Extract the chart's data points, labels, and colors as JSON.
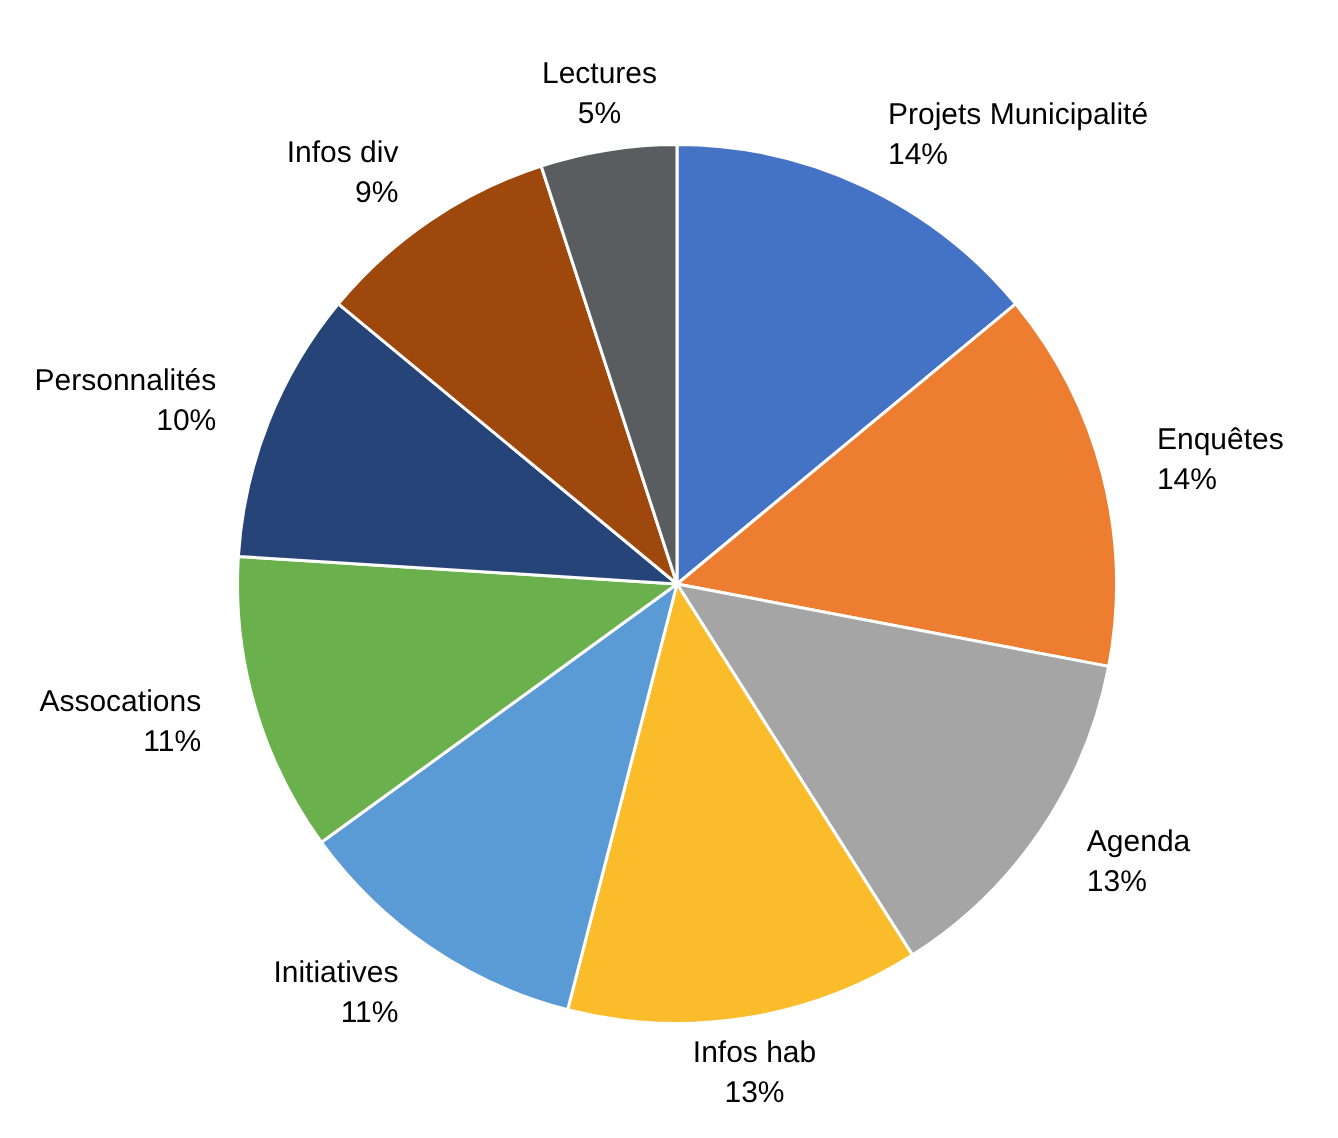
{
  "chart_data": {
    "type": "pie",
    "categories": [
      "Projets Municipalité",
      "Enquêtes",
      "Agenda",
      "Infos hab",
      "Initiatives",
      "Assocations",
      "Personnalités",
      "Infos div",
      "Lectures"
    ],
    "values": [
      14,
      14,
      13,
      13,
      11,
      11,
      10,
      9,
      5
    ],
    "colors": [
      "#4472c4",
      "#ed7d31",
      "#a5a5a5",
      "#fbbc2c",
      "#5b9bd5",
      "#6ab04c",
      "#264478",
      "#9e480e",
      "#5a5d5f"
    ],
    "value_labels": [
      "14%",
      "14%",
      "13%",
      "13%",
      "11%",
      "11%",
      "10%",
      "9%",
      "5%"
    ],
    "legend": false
  }
}
